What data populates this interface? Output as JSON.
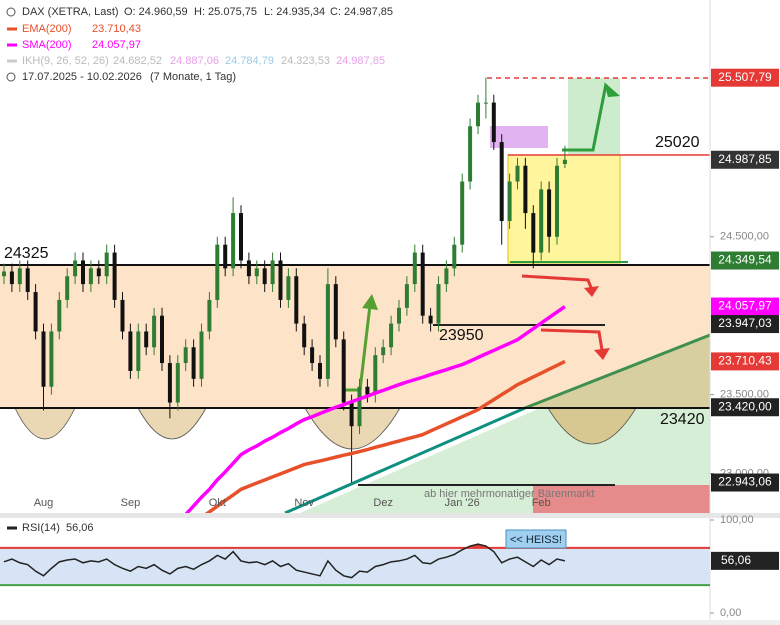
{
  "chart_data": [
    {
      "type": "candlestick",
      "title": "DAX (XETRA, Last)",
      "ohlc_labels": [
        "O: 24.960,59",
        "H: 25.075,75",
        "L: 24.935,34",
        "C: 24.987,85"
      ],
      "ikh": {
        "name": "IKH(9, 26, 52, 26)",
        "values": [
          "24.682,52",
          "24.887,06",
          "24.784,79",
          "24.323,53",
          "24.987,85"
        ]
      },
      "period": "17.07.2025 - 10.02.2026",
      "period_note": "(7 Monate, 1 Tag)",
      "categories": [
        null,
        null,
        null,
        null,
        null,
        "Aug",
        null,
        null,
        null,
        null,
        null,
        null,
        null,
        null,
        null,
        null,
        "Sep",
        null,
        null,
        null,
        null,
        null,
        null,
        null,
        null,
        null,
        null,
        "Okt",
        null,
        null,
        null,
        null,
        null,
        null,
        null,
        null,
        null,
        null,
        "Nov",
        null,
        null,
        null,
        null,
        null,
        null,
        null,
        null,
        null,
        "Dez",
        null,
        null,
        null,
        null,
        null,
        null,
        null,
        null,
        null,
        "Jan '26",
        null,
        null,
        null,
        null,
        null,
        null,
        null,
        null,
        null,
        "Feb",
        null,
        null,
        null
      ],
      "open": [
        24250,
        24280,
        24200,
        24300,
        24150,
        23900,
        23550,
        23900,
        24100,
        24250,
        24350,
        24200,
        24300,
        24250,
        24400,
        24100,
        23900,
        23650,
        23900,
        23800,
        24000,
        23700,
        23450,
        23700,
        23800,
        23600,
        23900,
        24100,
        24450,
        24300,
        24650,
        24350,
        24250,
        24300,
        24200,
        24350,
        24100,
        24250,
        23950,
        23800,
        23700,
        23600,
        24200,
        23850,
        23450,
        23300,
        23550,
        23500,
        23750,
        23800,
        23950,
        24050,
        24200,
        24400,
        24000,
        23950,
        24200,
        24300,
        24450,
        24850,
        25200,
        25350,
        25350,
        25100,
        24600,
        24850,
        24950,
        24650,
        24400,
        24800,
        24500,
        24960.59
      ],
      "high": [
        24330,
        24330,
        24350,
        24350,
        24200,
        23950,
        23950,
        24150,
        24300,
        24400,
        24400,
        24350,
        24350,
        24450,
        24450,
        24150,
        23950,
        23950,
        23950,
        24050,
        24050,
        23750,
        23750,
        23850,
        23850,
        23950,
        24150,
        24500,
        24500,
        24750,
        24700,
        24400,
        24350,
        24350,
        24400,
        24400,
        24300,
        24300,
        24000,
        23850,
        23750,
        24300,
        24250,
        23900,
        23500,
        23600,
        23600,
        23800,
        23850,
        24000,
        24100,
        24250,
        24450,
        24450,
        24050,
        24250,
        24350,
        24500,
        24900,
        25250,
        25400,
        25507.79,
        25400,
        25150,
        24900,
        25000,
        25000,
        24700,
        24850,
        24850,
        25000,
        25075.75
      ],
      "low": [
        24200,
        24150,
        24150,
        24100,
        23850,
        23400,
        23500,
        23850,
        24050,
        24200,
        24150,
        24150,
        24200,
        24200,
        24050,
        23850,
        23600,
        23600,
        23750,
        23750,
        23650,
        23350,
        23400,
        23650,
        23550,
        23550,
        23850,
        24050,
        24250,
        24250,
        24300,
        24200,
        24200,
        24150,
        24150,
        24050,
        24050,
        23900,
        23750,
        23650,
        23550,
        23550,
        23800,
        23400,
        22943.06,
        23250,
        23450,
        23450,
        23700,
        23750,
        23900,
        24000,
        24150,
        23950,
        23900,
        23900,
        24150,
        24250,
        24400,
        24800,
        25150,
        25250,
        25050,
        24450,
        24550,
        24800,
        24550,
        24300,
        24350,
        24400,
        24450,
        24935.34
      ],
      "close": [
        24280,
        24200,
        24300,
        24150,
        23900,
        23550,
        23900,
        24100,
        24250,
        24350,
        24200,
        24300,
        24250,
        24400,
        24100,
        23900,
        23650,
        23900,
        23800,
        24000,
        23700,
        23450,
        23700,
        23800,
        23600,
        23900,
        24100,
        24450,
        24300,
        24650,
        24350,
        24250,
        24300,
        24200,
        24350,
        24100,
        24250,
        23950,
        23800,
        23700,
        23600,
        24200,
        23850,
        23450,
        23300,
        23550,
        23500,
        23750,
        23800,
        23950,
        24050,
        24200,
        24400,
        24000,
        23950,
        24200,
        24300,
        24450,
        24850,
        25200,
        25350,
        25350,
        25100,
        24600,
        24850,
        24950,
        24650,
        24400,
        24800,
        24500,
        24950,
        24987.85
      ],
      "up_color": "#2e7d32",
      "down_color": "#111111",
      "series": [
        {
          "name": "EMA(200)",
          "value_label": "23.710,43",
          "color": "#e8502a",
          "values": [
            null,
            null,
            null,
            null,
            null,
            null,
            null,
            null,
            null,
            null,
            null,
            null,
            null,
            null,
            null,
            null,
            null,
            null,
            null,
            null,
            null,
            null,
            null,
            22650,
            22686,
            22722,
            22757,
            22793,
            22829,
            22864,
            22900,
            22920,
            22940,
            22959,
            22979,
            22998,
            23018,
            23037,
            23057,
            23069,
            23080,
            23092,
            23104,
            23116,
            23127,
            23139,
            23152,
            23166,
            23179,
            23193,
            23206,
            23220,
            23233,
            23247,
            23270,
            23292,
            23315,
            23337,
            23360,
            23382,
            23405,
            23437,
            23468,
            23500,
            23531,
            23563,
            23587,
            23612,
            23636,
            23661,
            23685,
            23710.43
          ]
        },
        {
          "name": "SMA(200)",
          "value_label": "24.057,97",
          "color": "#ff00ff",
          "values": [
            null,
            null,
            null,
            null,
            null,
            null,
            null,
            null,
            null,
            null,
            null,
            null,
            null,
            null,
            null,
            null,
            null,
            null,
            null,
            null,
            null,
            null,
            null,
            22740,
            22795,
            22850,
            22900,
            22960,
            23010,
            23065,
            23120,
            23150,
            23175,
            23205,
            23230,
            23260,
            23285,
            23315,
            23342,
            23360,
            23380,
            23400,
            23420,
            23437,
            23455,
            23473,
            23490,
            23510,
            23527,
            23545,
            23563,
            23580,
            23595,
            23610,
            23627,
            23643,
            23658,
            23675,
            23690,
            23712,
            23735,
            23758,
            23780,
            23803,
            23825,
            23848,
            23883,
            23918,
            23953,
            23988,
            24023,
            24057.97
          ]
        }
      ],
      "ylim": [
        22750,
        26000
      ],
      "yticks": [
        {
          "value": 24500,
          "label": "24.500,00"
        },
        {
          "value": 23500,
          "label": "23.500,00"
        },
        {
          "value": 23000,
          "label": "23.000,00"
        }
      ],
      "price_labels": [
        {
          "value": 25507.79,
          "label": "25.507,79",
          "color": "#e53935"
        },
        {
          "value": 24987.85,
          "label": "24.987,85",
          "color": "#333333"
        },
        {
          "value": 24349.54,
          "label": "24.349,54",
          "color": "#2e7d32"
        },
        {
          "value": 24057.97,
          "label": "24.057,97",
          "color": "#ff00ff"
        },
        {
          "value": 23947.03,
          "label": "23.947,03",
          "color": "#222222"
        },
        {
          "value": 23710.43,
          "label": "23.710,43",
          "color": "#e53935"
        },
        {
          "value": 23420,
          "label": "23.420,00",
          "color": "#222222"
        },
        {
          "value": 22943.06,
          "label": "22.943,06",
          "color": "#222222"
        }
      ],
      "annotations": [
        "24325",
        "23950",
        "25020",
        "23420",
        "ab hier mehrmonatiger Bärenmarkt"
      ]
    },
    {
      "type": "line",
      "series": [
        {
          "name": "RSI(14)",
          "value_label": "56,06",
          "color": "#222222",
          "values": [
            55,
            58,
            54,
            52,
            45,
            40,
            48,
            55,
            57,
            58,
            54,
            56,
            55,
            58,
            52,
            48,
            45,
            50,
            48,
            52,
            46,
            42,
            48,
            50,
            47,
            52,
            56,
            62,
            58,
            66,
            56,
            54,
            55,
            52,
            56,
            50,
            53,
            46,
            44,
            42,
            40,
            56,
            46,
            40,
            38,
            45,
            44,
            50,
            52,
            55,
            56,
            58,
            62,
            54,
            53,
            58,
            60,
            63,
            68,
            72,
            74,
            72,
            66,
            54,
            58,
            60,
            55,
            50,
            57,
            52,
            58,
            56.06
          ]
        }
      ],
      "ylim": [
        0,
        100
      ],
      "yticks": [
        {
          "value": 100,
          "label": "100,00"
        },
        {
          "value": 0,
          "label": "0,00"
        }
      ],
      "levels": [
        {
          "value": 70,
          "color": "#e53935"
        },
        {
          "value": 30,
          "color": "#43a047"
        }
      ],
      "overbought_color": "#e53935",
      "band_color": "#d6e4f5",
      "annotation": "<< HEISS!"
    }
  ]
}
